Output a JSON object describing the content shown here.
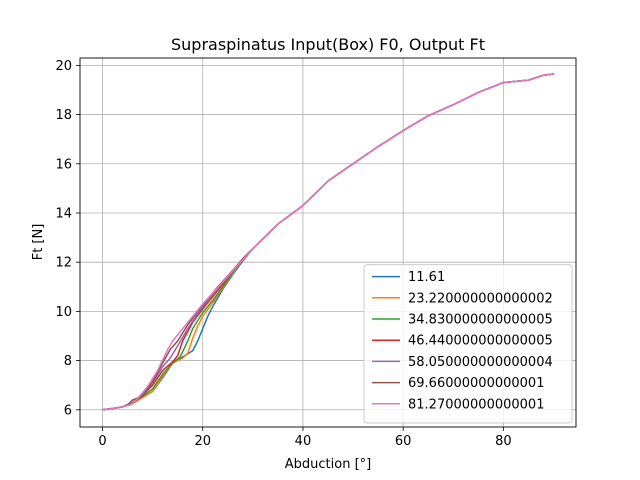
{
  "chart_data": {
    "type": "line",
    "title": "Supraspinatus Input(Box) F0, Output Ft",
    "xlabel": "Abduction [°]",
    "ylabel": "Ft [N]",
    "xlim": [
      -4.5,
      94.5
    ],
    "ylim": [
      5.3,
      20.3
    ],
    "xticks": [
      0,
      20,
      40,
      60,
      80
    ],
    "yticks": [
      6,
      8,
      10,
      12,
      14,
      16,
      18,
      20
    ],
    "xtick_labels": [
      "0",
      "20",
      "40",
      "60",
      "80"
    ],
    "ytick_labels": [
      "6",
      "8",
      "10",
      "12",
      "14",
      "16",
      "18",
      "20"
    ],
    "grid": true,
    "legend_position": "lower-right",
    "series": [
      {
        "name": "11.61",
        "color": "#1f77b4",
        "points": [
          [
            0,
            6.0
          ],
          [
            2,
            6.05
          ],
          [
            4,
            6.12
          ],
          [
            6,
            6.25
          ],
          [
            8,
            6.5
          ],
          [
            10,
            6.75
          ],
          [
            12,
            7.3
          ],
          [
            14,
            7.9
          ],
          [
            16,
            8.15
          ],
          [
            18,
            8.4
          ],
          [
            19,
            8.8
          ],
          [
            20,
            9.3
          ],
          [
            21,
            9.8
          ],
          [
            22,
            10.2
          ],
          [
            24,
            10.9
          ],
          [
            26,
            11.5
          ],
          [
            28,
            12.05
          ],
          [
            30,
            12.55
          ],
          [
            35,
            13.55
          ],
          [
            40,
            14.3
          ],
          [
            45,
            15.3
          ],
          [
            50,
            16.0
          ],
          [
            55,
            16.7
          ],
          [
            60,
            17.35
          ],
          [
            65,
            17.95
          ],
          [
            70,
            18.4
          ],
          [
            75,
            18.9
          ],
          [
            80,
            19.3
          ],
          [
            85,
            19.4
          ],
          [
            88,
            19.6
          ],
          [
            90,
            19.65
          ]
        ]
      },
      {
        "name": "23.220000000000002",
        "color": "#ff7f0e",
        "points": [
          [
            0,
            6.0
          ],
          [
            2,
            6.05
          ],
          [
            4,
            6.12
          ],
          [
            6,
            6.25
          ],
          [
            8,
            6.5
          ],
          [
            10,
            6.75
          ],
          [
            12,
            7.35
          ],
          [
            14,
            7.9
          ],
          [
            16,
            8.1
          ],
          [
            17,
            8.3
          ],
          [
            18,
            8.9
          ],
          [
            19,
            9.4
          ],
          [
            20,
            9.8
          ],
          [
            22,
            10.35
          ],
          [
            24,
            10.95
          ],
          [
            26,
            11.55
          ],
          [
            28,
            12.1
          ],
          [
            30,
            12.55
          ],
          [
            35,
            13.55
          ],
          [
            40,
            14.3
          ],
          [
            45,
            15.3
          ],
          [
            50,
            16.0
          ],
          [
            55,
            16.7
          ],
          [
            60,
            17.35
          ],
          [
            65,
            17.95
          ],
          [
            70,
            18.4
          ],
          [
            75,
            18.9
          ],
          [
            80,
            19.3
          ],
          [
            85,
            19.4
          ],
          [
            88,
            19.6
          ],
          [
            90,
            19.65
          ]
        ]
      },
      {
        "name": "34.830000000000005",
        "color": "#2ca02c",
        "points": [
          [
            0,
            6.0
          ],
          [
            2,
            6.05
          ],
          [
            4,
            6.12
          ],
          [
            6,
            6.3
          ],
          [
            8,
            6.55
          ],
          [
            10,
            6.85
          ],
          [
            12,
            7.45
          ],
          [
            14,
            7.9
          ],
          [
            15.5,
            8.15
          ],
          [
            17,
            8.8
          ],
          [
            18,
            9.3
          ],
          [
            20,
            9.95
          ],
          [
            22,
            10.45
          ],
          [
            24,
            11.0
          ],
          [
            26,
            11.6
          ],
          [
            28,
            12.1
          ],
          [
            30,
            12.55
          ],
          [
            35,
            13.55
          ],
          [
            40,
            14.3
          ],
          [
            45,
            15.3
          ],
          [
            50,
            16.0
          ],
          [
            55,
            16.7
          ],
          [
            60,
            17.35
          ],
          [
            65,
            17.95
          ],
          [
            70,
            18.4
          ],
          [
            75,
            18.9
          ],
          [
            80,
            19.3
          ],
          [
            85,
            19.4
          ],
          [
            88,
            19.6
          ],
          [
            90,
            19.65
          ]
        ]
      },
      {
        "name": "46.440000000000005",
        "color": "#d62728",
        "points": [
          [
            0,
            6.0
          ],
          [
            2,
            6.05
          ],
          [
            4,
            6.12
          ],
          [
            6,
            6.3
          ],
          [
            8,
            6.6
          ],
          [
            10,
            7.0
          ],
          [
            12,
            7.6
          ],
          [
            14,
            7.95
          ],
          [
            15,
            8.2
          ],
          [
            16,
            8.8
          ],
          [
            18,
            9.55
          ],
          [
            20,
            10.1
          ],
          [
            22,
            10.6
          ],
          [
            24,
            11.1
          ],
          [
            26,
            11.65
          ],
          [
            28,
            12.15
          ],
          [
            30,
            12.55
          ],
          [
            35,
            13.55
          ],
          [
            40,
            14.3
          ],
          [
            45,
            15.3
          ],
          [
            50,
            16.0
          ],
          [
            55,
            16.7
          ],
          [
            60,
            17.35
          ],
          [
            65,
            17.95
          ],
          [
            70,
            18.4
          ],
          [
            75,
            18.9
          ],
          [
            80,
            19.3
          ],
          [
            85,
            19.4
          ],
          [
            88,
            19.6
          ],
          [
            90,
            19.65
          ]
        ]
      },
      {
        "name": "58.050000000000004",
        "color": "#9467bd",
        "points": [
          [
            0,
            6.0
          ],
          [
            2,
            6.05
          ],
          [
            4,
            6.12
          ],
          [
            6,
            6.3
          ],
          [
            8,
            6.65
          ],
          [
            10,
            7.1
          ],
          [
            12,
            7.75
          ],
          [
            13.5,
            8.1
          ],
          [
            15,
            8.6
          ],
          [
            17,
            9.3
          ],
          [
            19,
            9.9
          ],
          [
            21,
            10.45
          ],
          [
            23,
            10.95
          ],
          [
            25,
            11.4
          ],
          [
            27,
            11.9
          ],
          [
            29,
            12.35
          ],
          [
            31,
            12.75
          ],
          [
            35,
            13.55
          ],
          [
            40,
            14.3
          ],
          [
            45,
            15.3
          ],
          [
            50,
            16.0
          ],
          [
            55,
            16.7
          ],
          [
            60,
            17.35
          ],
          [
            65,
            17.95
          ],
          [
            70,
            18.4
          ],
          [
            75,
            18.9
          ],
          [
            80,
            19.3
          ],
          [
            85,
            19.4
          ],
          [
            88,
            19.6
          ],
          [
            90,
            19.65
          ]
        ]
      },
      {
        "name": "69.66000000000001",
        "color": "#8c564b",
        "points": [
          [
            0,
            6.0
          ],
          [
            2,
            6.05
          ],
          [
            4,
            6.12
          ],
          [
            5,
            6.2
          ],
          [
            6,
            6.4
          ],
          [
            8,
            6.55
          ],
          [
            10,
            7.15
          ],
          [
            12,
            7.9
          ],
          [
            13.5,
            8.45
          ],
          [
            15,
            8.8
          ],
          [
            17,
            9.45
          ],
          [
            19,
            10.0
          ],
          [
            21,
            10.5
          ],
          [
            23,
            11.0
          ],
          [
            25,
            11.45
          ],
          [
            27,
            11.9
          ],
          [
            29,
            12.35
          ],
          [
            31,
            12.75
          ],
          [
            35,
            13.55
          ],
          [
            40,
            14.3
          ],
          [
            45,
            15.3
          ],
          [
            50,
            16.0
          ],
          [
            55,
            16.7
          ],
          [
            60,
            17.35
          ],
          [
            65,
            17.95
          ],
          [
            70,
            18.4
          ],
          [
            75,
            18.9
          ],
          [
            80,
            19.3
          ],
          [
            85,
            19.4
          ],
          [
            88,
            19.6
          ],
          [
            90,
            19.65
          ]
        ]
      },
      {
        "name": "81.27000000000001",
        "color": "#e377c2",
        "points": [
          [
            0,
            6.0
          ],
          [
            2,
            6.05
          ],
          [
            4,
            6.12
          ],
          [
            5.5,
            6.2
          ],
          [
            7,
            6.45
          ],
          [
            9,
            6.95
          ],
          [
            11,
            7.6
          ],
          [
            13,
            8.45
          ],
          [
            14,
            8.8
          ],
          [
            16,
            9.3
          ],
          [
            18,
            9.8
          ],
          [
            20,
            10.3
          ],
          [
            22,
            10.75
          ],
          [
            24,
            11.2
          ],
          [
            26,
            11.65
          ],
          [
            28,
            12.1
          ],
          [
            30,
            12.55
          ],
          [
            35,
            13.55
          ],
          [
            40,
            14.3
          ],
          [
            45,
            15.3
          ],
          [
            50,
            16.0
          ],
          [
            55,
            16.7
          ],
          [
            60,
            17.35
          ],
          [
            65,
            17.95
          ],
          [
            70,
            18.4
          ],
          [
            75,
            18.9
          ],
          [
            80,
            19.3
          ],
          [
            85,
            19.4
          ],
          [
            88,
            19.6
          ],
          [
            90,
            19.65
          ]
        ]
      }
    ]
  }
}
